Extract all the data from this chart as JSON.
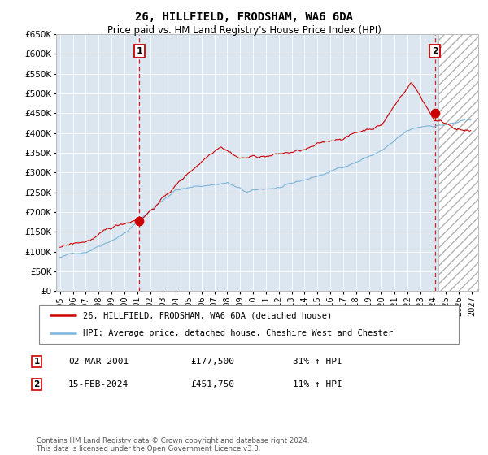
{
  "title": "26, HILLFIELD, FRODSHAM, WA6 6DA",
  "subtitle": "Price paid vs. HM Land Registry's House Price Index (HPI)",
  "ylim": [
    0,
    650000
  ],
  "yticks": [
    0,
    50000,
    100000,
    150000,
    200000,
    250000,
    300000,
    350000,
    400000,
    450000,
    500000,
    550000,
    600000,
    650000
  ],
  "xlim_start": 1994.7,
  "xlim_end": 2027.5,
  "bg_color": "#dce6f1",
  "hpi_color": "#7ab4d8",
  "price_color": "#cc0000",
  "marker_color": "#cc0000",
  "sale1_date": "02-MAR-2001",
  "sale1_price": 177500,
  "sale1_pct": "31%",
  "sale2_date": "15-FEB-2024",
  "sale2_price": 451750,
  "sale2_pct": "11%",
  "legend_line1": "26, HILLFIELD, FRODSHAM, WA6 6DA (detached house)",
  "legend_line2": "HPI: Average price, detached house, Cheshire West and Chester",
  "footer": "Contains HM Land Registry data © Crown copyright and database right 2024.\nThis data is licensed under the Open Government Licence v3.0.",
  "sale1_x": 2001.17,
  "sale2_x": 2024.12,
  "future_start": 2024.42,
  "seed": 42
}
